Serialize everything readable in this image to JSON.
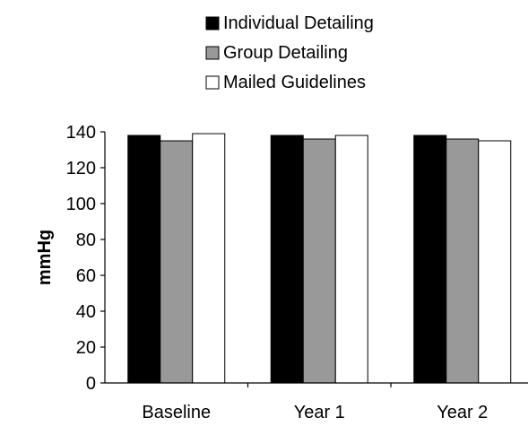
{
  "chart_data": {
    "type": "bar",
    "title": "",
    "xlabel": "",
    "ylabel": "mmHg",
    "ylim": [
      0,
      140
    ],
    "yticks": [
      0,
      20,
      40,
      60,
      80,
      100,
      120,
      140
    ],
    "grid": false,
    "legend_position": "top-center",
    "categories": [
      "Baseline",
      "Year 1",
      "Year 2"
    ],
    "series": [
      {
        "name": "Individual Detailing",
        "color": "#000000",
        "values": [
          138,
          138,
          138
        ]
      },
      {
        "name": "Group Detailing",
        "color": "#999999",
        "values": [
          135,
          136,
          136
        ]
      },
      {
        "name": "Mailed Guidelines",
        "color": "#ffffff",
        "values": [
          139,
          138,
          135
        ]
      }
    ]
  }
}
